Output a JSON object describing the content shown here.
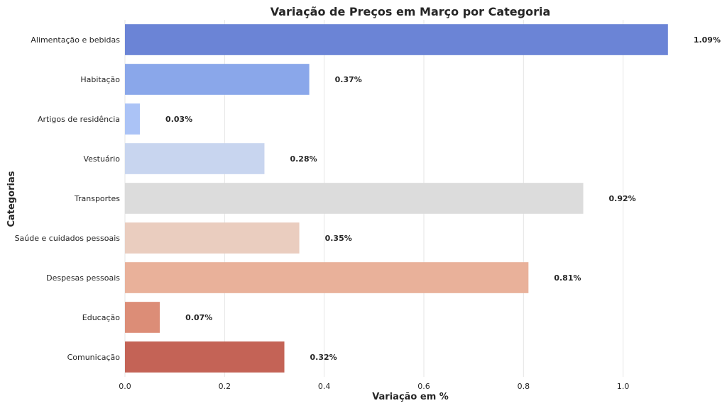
{
  "chart_data": {
    "type": "bar",
    "orientation": "horizontal",
    "title": "Variação de Preços em Março por Categoria",
    "xlabel": "Variação em %",
    "ylabel": "Categorias",
    "categories": [
      "Alimentação e bebidas",
      "Habitação",
      "Artigos de residência",
      "Vestuário",
      "Transportes",
      "Saúde e cuidados pessoais",
      "Despesas pessoais",
      "Educação",
      "Comunicação"
    ],
    "values": [
      1.09,
      0.37,
      0.03,
      0.28,
      0.92,
      0.35,
      0.81,
      0.07,
      0.32
    ],
    "data_labels": [
      "1.09%",
      "0.37%",
      "0.03%",
      "0.28%",
      "0.92%",
      "0.35%",
      "0.81%",
      "0.07%",
      "0.32%"
    ],
    "colors": [
      "#6b84d6",
      "#8aa7ea",
      "#abc3f6",
      "#c8d5ef",
      "#dcdcdc",
      "#eacdbf",
      "#e9b19a",
      "#dc8d77",
      "#c46356"
    ],
    "xticks": [
      0.0,
      0.2,
      0.4,
      0.6,
      0.8,
      1.0
    ],
    "xtick_labels": [
      "0.0",
      "0.2",
      "0.4",
      "0.6",
      "0.8",
      "1.0"
    ],
    "xlim": [
      0,
      1.2
    ],
    "grid": "vertical",
    "legend": "none"
  }
}
